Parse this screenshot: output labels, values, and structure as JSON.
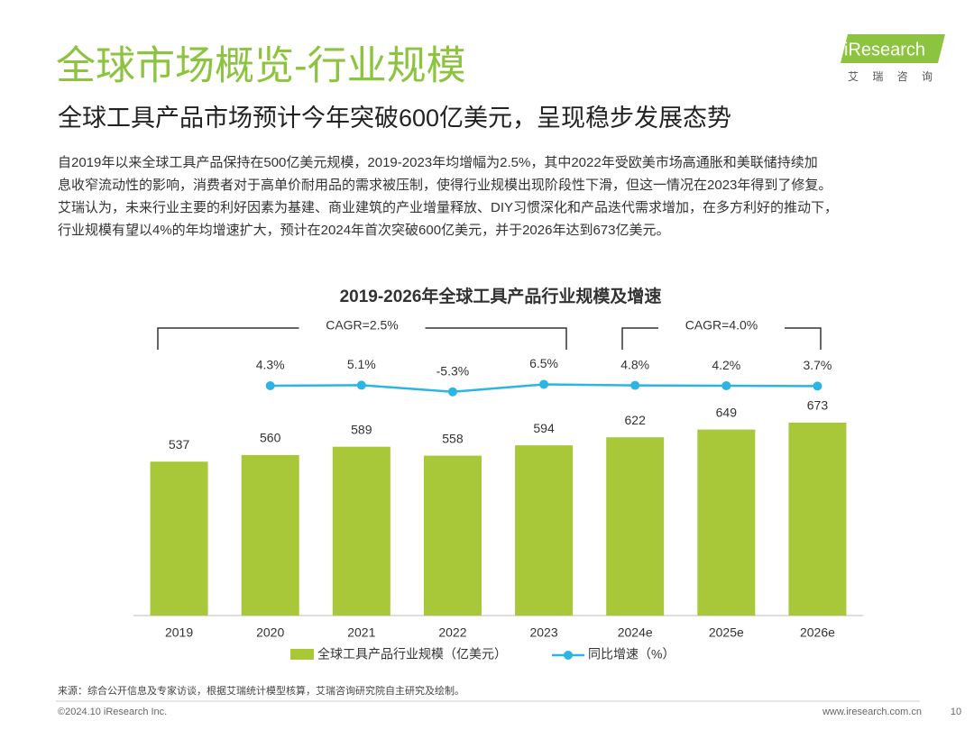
{
  "header": {
    "title": "全球市场概览-行业规模",
    "subtitle": "全球工具产品市场预计今年突破600亿美元，呈现稳步发展态势",
    "logo": "iResearch",
    "logo_cn": "艾 瑞 咨 询"
  },
  "body": {
    "lines": [
      "自2019年以来全球工具产品保持在500亿美元规模，2019-2023年均增幅为2.5%，其中2022年受欧美市场高通胀和美联储持续加",
      "息收窄流动性的影响，消费者对于高单价耐用品的需求被压制，使得行业规模出现阶段性下滑，但这一情况在2023年得到了修复。",
      "艾瑞认为，未来行业主要的利好因素为基建、商业建筑的产业增量释放、DIY习惯深化和产品迭代需求增加，在多方利好的推动下，",
      "行业规模有望以4%的年均增速扩大，预计在2024年首次突破600亿美元，并于2026年达到673亿美元。"
    ]
  },
  "chart_data": {
    "type": "bar",
    "title": "2019-2026年全球工具产品行业规模及增速",
    "categories": [
      "2019",
      "2020",
      "2021",
      "2022",
      "2023",
      "2024e",
      "2025e",
      "2026e"
    ],
    "series": [
      {
        "name": "全球工具产品行业规模（亿美元）",
        "color": "#a8c83a",
        "type": "bar",
        "values": [
          537,
          560,
          589,
          558,
          594,
          622,
          649,
          673
        ]
      },
      {
        "name": "同比增速（%）",
        "color": "#2bb5e5",
        "type": "line",
        "axis": "y2",
        "values": [
          null,
          4.3,
          5.1,
          -5.3,
          6.5,
          4.8,
          4.2,
          3.7
        ],
        "value_labels": [
          null,
          "4.3%",
          "5.1%",
          "-5.3%",
          "6.5%",
          "4.8%",
          "4.2%",
          "3.7%"
        ]
      }
    ],
    "annotations": [
      "CAGR=2.5%",
      "CAGR=4.0%"
    ],
    "legend": "bottom"
  },
  "footer": {
    "source": "来源：综合公开信息及专家访谈，根据艾瑞统计模型核算，艾瑞咨询研究院自主研究及绘制。",
    "copyright": "©2024.10 iResearch Inc.",
    "url": "www.iresearch.com.cn",
    "page": "10"
  }
}
